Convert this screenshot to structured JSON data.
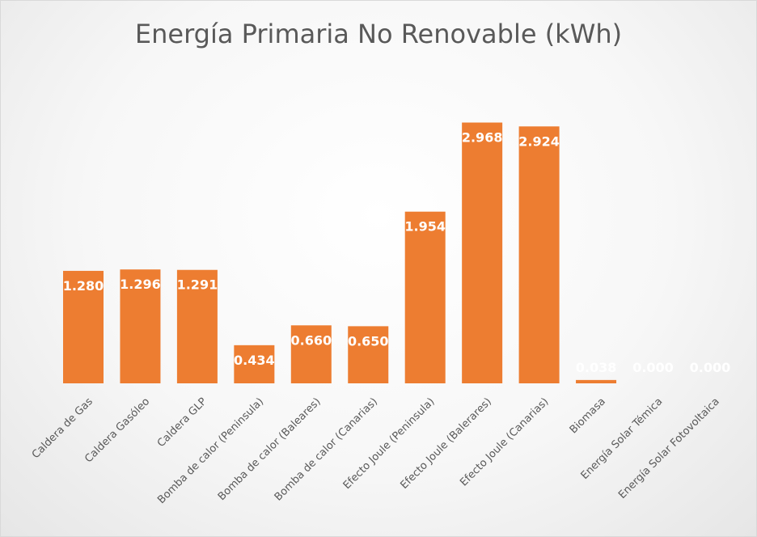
{
  "chart_data": {
    "type": "bar",
    "title": "Energía Primaria No Renovable (kWh)",
    "categories": [
      "Caldera de Gas",
      "Caldera Gasóleo",
      "Caldera GLP",
      "Bomba de calor (Peninsula)",
      "Bomba de calor (Baleares)",
      "Bomba de calor (Canarias)",
      "Efecto Joule (Peninsula)",
      "Efecto Joule (Balerares)",
      "Efecto Joule (Canarias)",
      "Biomasa",
      "Energía Solar Témica",
      "Energía Solar Fotovoltaica"
    ],
    "values": [
      1.28,
      1.296,
      1.291,
      0.434,
      0.66,
      0.65,
      1.954,
      2.968,
      2.924,
      0.038,
      0.0,
      0.0
    ],
    "value_labels": [
      "1.280",
      "1.296",
      "1.291",
      "0.434",
      "0.660",
      "0.650",
      "1.954",
      "2.968",
      "2.924",
      "0.038",
      "0.000",
      "0.000"
    ],
    "bar_color": "#ed7d31",
    "ylim": [
      0,
      3.2
    ],
    "grid": false,
    "legend": "none"
  }
}
